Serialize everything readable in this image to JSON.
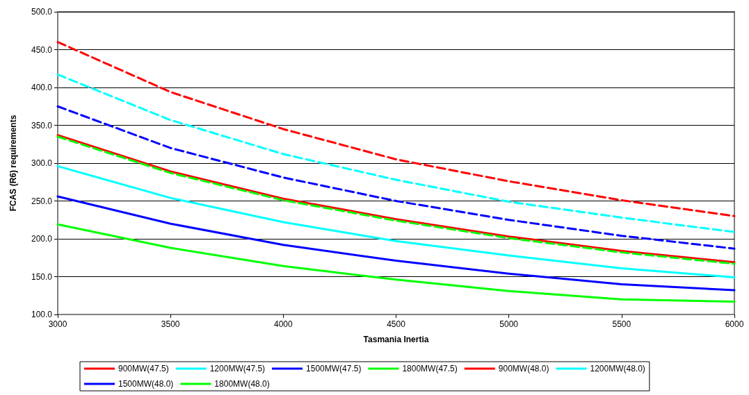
{
  "chart_data": {
    "type": "line",
    "xlabel": "Tasmania Inertia",
    "ylabel": "FCAS (R6) requirements",
    "x": [
      3000,
      3500,
      4000,
      4500,
      5000,
      5500,
      6000
    ],
    "xlim": [
      3000,
      6000
    ],
    "xticks": [
      3000,
      3500,
      4000,
      4500,
      5000,
      5500,
      6000
    ],
    "ylim": [
      100,
      500
    ],
    "yticks": [
      {
        "value": 100,
        "label": "100.0"
      },
      {
        "value": 150,
        "label": "150.0"
      },
      {
        "value": 200,
        "label": "200.0"
      },
      {
        "value": 250,
        "label": "250.0"
      },
      {
        "value": 300,
        "label": "300.0"
      },
      {
        "value": 350,
        "label": "350.0"
      },
      {
        "value": 400,
        "label": "400.0"
      },
      {
        "value": 450,
        "label": "450.0"
      },
      {
        "value": 500,
        "label": "500.0"
      }
    ],
    "grid": "y",
    "legend": "bottom",
    "marker": "none",
    "series": [
      {
        "name": "900MW(47.5)",
        "color": "#ff0000",
        "line_style": "solid",
        "values": [
          337,
          289,
          253,
          226,
          203,
          184,
          169
        ]
      },
      {
        "name": "1200MW(47.5)",
        "color": "#00ffff",
        "line_style": "solid",
        "values": [
          296,
          254,
          222,
          197,
          178,
          161,
          149
        ]
      },
      {
        "name": "1500MW(47.5)",
        "color": "#0000ff",
        "line_style": "solid",
        "values": [
          256,
          220,
          192,
          171,
          154,
          140,
          132
        ]
      },
      {
        "name": "1800MW(47.5)",
        "color": "#00ff00",
        "line_style": "solid",
        "values": [
          219,
          188,
          164,
          146,
          131,
          120,
          117
        ]
      },
      {
        "name": "900MW(48.0)",
        "color": "#ff0000",
        "line_style": "dashed",
        "values": [
          460,
          394,
          345,
          305,
          276,
          251,
          230
        ]
      },
      {
        "name": "1200MW(48.0)",
        "color": "#00ffff",
        "line_style": "dashed",
        "values": [
          417,
          357,
          312,
          278,
          249,
          228,
          209
        ]
      },
      {
        "name": "1500MW(48.0)",
        "color": "#0000ff",
        "line_style": "dashed",
        "values": [
          375,
          320,
          281,
          250,
          225,
          204,
          187
        ]
      },
      {
        "name": "1800MW(48.0)",
        "color": "#00ff00",
        "line_style": "dashed",
        "values": [
          335,
          287,
          251,
          224,
          201,
          182,
          167
        ]
      }
    ]
  }
}
